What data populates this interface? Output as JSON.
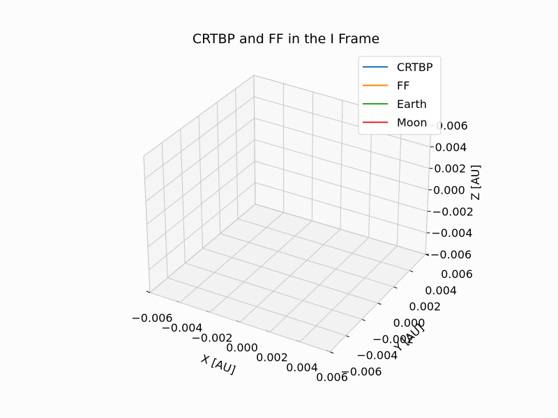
{
  "chart_data": {
    "type": "line",
    "title": "CRTBP and FF in the I Frame",
    "xlabel": "X [AU]",
    "ylabel": "Y [AU]",
    "zlabel": "Z [AU]",
    "xlim": [
      -0.006,
      0.006
    ],
    "ylim": [
      -0.006,
      0.006
    ],
    "zlim": [
      -0.006,
      0.006
    ],
    "x_ticks": [
      "−0.006",
      "−0.004",
      "−0.002",
      "0.000",
      "0.002",
      "0.004",
      "0.006"
    ],
    "y_ticks": [
      "−0.006",
      "−0.004",
      "−0.002",
      "0.000",
      "0.002",
      "0.004",
      "0.006"
    ],
    "z_ticks": [
      "−0.006",
      "−0.004",
      "−0.002",
      "0.000",
      "0.002",
      "0.004",
      "0.006"
    ],
    "grid": true,
    "legend_position": "top-right",
    "series": [
      {
        "name": "CRTBP",
        "color": "#1f77b4",
        "points": []
      },
      {
        "name": "FF",
        "color": "#ff7f0e",
        "points": []
      },
      {
        "name": "Earth",
        "color": "#2ca02c",
        "points": []
      },
      {
        "name": "Moon",
        "color": "#d62728",
        "points": []
      }
    ]
  }
}
